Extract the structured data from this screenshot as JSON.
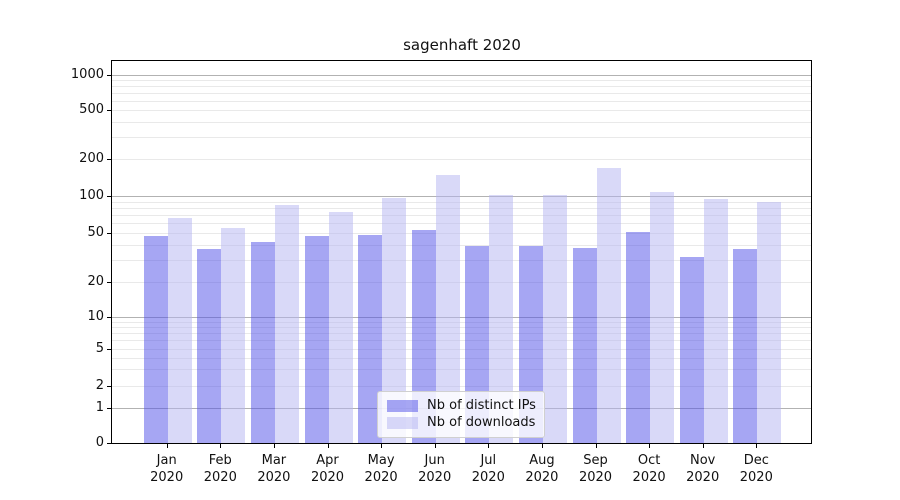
{
  "title": "sagenhaft 2020",
  "chart_data": {
    "type": "bar",
    "title": "sagenhaft 2020",
    "categories": [
      "Jan 2020",
      "Feb 2020",
      "Mar 2020",
      "Apr 2020",
      "May 2020",
      "Jun 2020",
      "Jul 2020",
      "Aug 2020",
      "Sep 2020",
      "Oct 2020",
      "Nov 2020",
      "Dec 2020"
    ],
    "series": [
      {
        "name": "Nb of distinct IPs",
        "color": "rgba(77,77,231,0.5)",
        "values": [
          47,
          37,
          42,
          47,
          48,
          53,
          39,
          39,
          38,
          51,
          32,
          37
        ]
      },
      {
        "name": "Nb of downloads",
        "color": "rgba(179,179,241,0.5)",
        "values": [
          66,
          55,
          84,
          74,
          97,
          149,
          102,
          101,
          170,
          108,
          94,
          90
        ]
      }
    ],
    "y_axis": {
      "scale": "symlog",
      "tick_labels": [
        0,
        1,
        2,
        5,
        10,
        20,
        50,
        100,
        200,
        500,
        1000
      ]
    },
    "x_axis": {
      "tick_label_lines": 2
    },
    "legend": {
      "position": "bottom-center"
    },
    "grid": "both",
    "colors": {
      "major_grid": "#b2b2b2",
      "minor_grid": "#e9e9e9",
      "axis": "#000000",
      "background": "#ffffff"
    }
  }
}
